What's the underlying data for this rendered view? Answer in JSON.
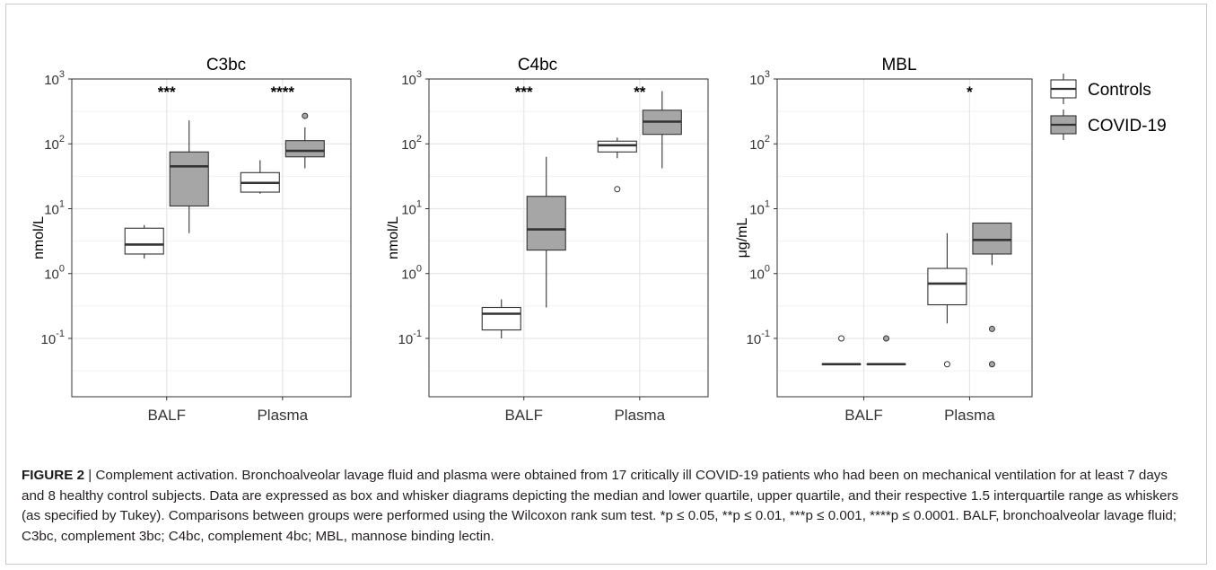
{
  "chart_data": [
    {
      "type": "box",
      "title": "C3bc",
      "ylabel": "nmol/L",
      "yscale": "log",
      "ylim_log10": [
        -1.9,
        3.0
      ],
      "yticks_log10": [
        -1,
        0,
        1,
        2,
        3
      ],
      "categories": [
        "BALF",
        "Plasma"
      ],
      "series": [
        {
          "name": "Controls",
          "boxes": [
            {
              "category": "BALF",
              "min": 1.7,
              "q1": 2.0,
              "median": 2.8,
              "q3": 5.0,
              "max": 5.6,
              "outliers": []
            },
            {
              "category": "Plasma",
              "min": 17,
              "q1": 18,
              "median": 25,
              "q3": 36,
              "max": 56,
              "outliers": []
            }
          ]
        },
        {
          "name": "COVID-19",
          "boxes": [
            {
              "category": "BALF",
              "min": 4.2,
              "q1": 11,
              "median": 45,
              "q3": 75,
              "max": 230,
              "outliers": []
            },
            {
              "category": "Plasma",
              "min": 42,
              "q1": 63,
              "median": 78,
              "q3": 112,
              "max": 180,
              "outliers": [
                270
              ]
            }
          ]
        }
      ],
      "significance": [
        {
          "category": "BALF",
          "label": "***"
        },
        {
          "category": "Plasma",
          "label": "****"
        }
      ]
    },
    {
      "type": "box",
      "title": "C4bc",
      "ylabel": "nmol/L",
      "yscale": "log",
      "ylim_log10": [
        -1.9,
        3.0
      ],
      "yticks_log10": [
        -1,
        0,
        1,
        2,
        3
      ],
      "categories": [
        "BALF",
        "Plasma"
      ],
      "series": [
        {
          "name": "Controls",
          "boxes": [
            {
              "category": "BALF",
              "min": 0.1,
              "q1": 0.135,
              "median": 0.24,
              "q3": 0.3,
              "max": 0.4,
              "outliers": []
            },
            {
              "category": "Plasma",
              "min": 60,
              "q1": 75,
              "median": 95,
              "q3": 110,
              "max": 125,
              "outliers": [
                20
              ]
            }
          ]
        },
        {
          "name": "COVID-19",
          "boxes": [
            {
              "category": "BALF",
              "min": 0.3,
              "q1": 2.3,
              "median": 4.8,
              "q3": 15.5,
              "max": 63,
              "outliers": []
            },
            {
              "category": "Plasma",
              "min": 42,
              "q1": 140,
              "median": 220,
              "q3": 330,
              "max": 650,
              "outliers": []
            }
          ]
        }
      ],
      "significance": [
        {
          "category": "BALF",
          "label": "***"
        },
        {
          "category": "Plasma",
          "label": "**"
        }
      ]
    },
    {
      "type": "box",
      "title": "MBL",
      "ylabel": "μg/mL",
      "yscale": "log",
      "ylim_log10": [
        -1.9,
        3.0
      ],
      "yticks_log10": [
        -1,
        0,
        1,
        2,
        3
      ],
      "categories": [
        "BALF",
        "Plasma"
      ],
      "series": [
        {
          "name": "Controls",
          "boxes": [
            {
              "category": "BALF",
              "min": 0.04,
              "q1": 0.04,
              "median": 0.04,
              "q3": 0.04,
              "max": 0.04,
              "outliers": [
                0.1
              ]
            },
            {
              "category": "Plasma",
              "min": 0.17,
              "q1": 0.33,
              "median": 0.7,
              "q3": 1.2,
              "max": 4.2,
              "outliers": [
                0.04
              ]
            }
          ]
        },
        {
          "name": "COVID-19",
          "boxes": [
            {
              "category": "BALF",
              "min": 0.04,
              "q1": 0.04,
              "median": 0.04,
              "q3": 0.04,
              "max": 0.04,
              "outliers": [
                0.1
              ]
            },
            {
              "category": "Plasma",
              "min": 1.35,
              "q1": 2.0,
              "median": 3.3,
              "q3": 6.0,
              "max": 6.0,
              "outliers": [
                0.14,
                0.04
              ]
            }
          ]
        }
      ],
      "significance": [
        {
          "category": "Plasma",
          "label": "*"
        }
      ]
    }
  ],
  "legend": {
    "placement": "right",
    "items": [
      {
        "name": "Controls",
        "fill": "#ffffff"
      },
      {
        "name": "COVID-19",
        "fill": "#a6a6a6"
      }
    ]
  },
  "colors": {
    "controls_fill": "#ffffff",
    "covid_fill": "#a6a6a6",
    "box_stroke": "#333333",
    "panel_border": "#333333",
    "grid": "#e6e6e6",
    "text": "#231f20"
  },
  "caption": {
    "label": "FIGURE 2",
    "separator": " | ",
    "text": "Complement activation. Bronchoalveolar lavage fluid and plasma were obtained from 17 critically ill COVID-19 patients who had been on mechanical ventilation for at least 7 days and 8 healthy control subjects. Data are expressed as box and whisker diagrams depicting the median and lower quartile, upper quartile, and their respective 1.5 interquartile range as whiskers (as specified by Tukey). Comparisons between groups were performed using the Wilcoxon rank sum test. *p ≤ 0.05, **p ≤ 0.01, ***p ≤ 0.001, ****p ≤ 0.0001. BALF, bronchoalveolar lavage fluid; C3bc, complement 3bc; C4bc, complement 4bc; MBL, mannose binding lectin."
  }
}
